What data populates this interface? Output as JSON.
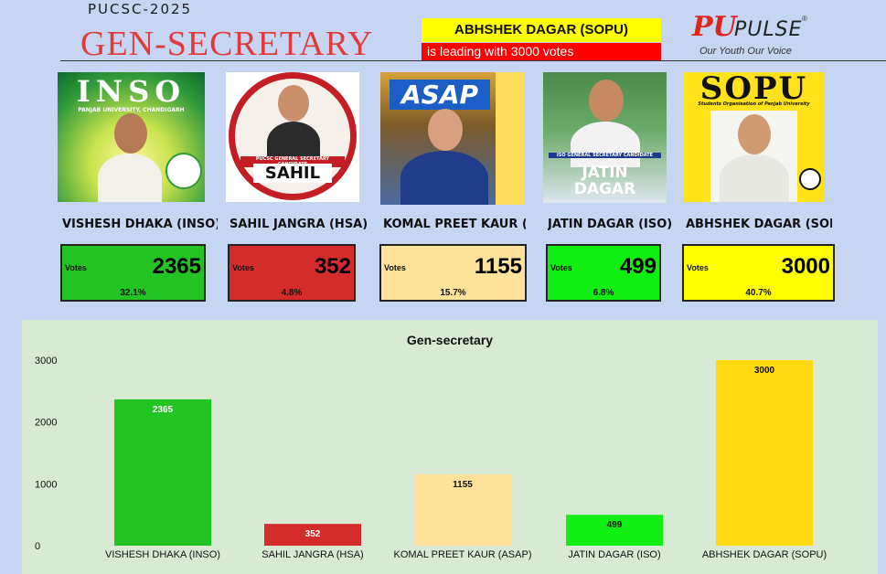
{
  "header": {
    "subtitle": "PUCSC-2025",
    "title": "GEN-SECRETARY"
  },
  "leader": {
    "name": "ABHSHEK DAGAR (SOPU)",
    "text": "is leading with 3000 votes"
  },
  "logo": {
    "brand_pu": "PU",
    "brand_pulse": "PULSE",
    "tagline": "Our Youth Our Voice",
    "registered": "®"
  },
  "colors": {
    "inso": "#22c322",
    "hsa": "#d42b2b",
    "asap": "#ffe299",
    "iso": "#11ee11",
    "sopu": "#ffff00",
    "chart_sopu": "#ffd912"
  },
  "candidates": [
    {
      "name": "VISHESH DHAKA (INSO)",
      "votes_label": "Votes",
      "votes": "2365",
      "percent": "32.1%",
      "photo": {
        "badge": "INSO",
        "caption": "PANJAB UNIVERSITY, CHANDIGARH"
      }
    },
    {
      "name": "SAHIL JANGRA (HSA)",
      "votes_label": "Votes",
      "votes": "352",
      "percent": "4.8%",
      "photo": {
        "badge": "SAHIL",
        "caption": "PUCSC GENERAL SECRETARY CANDIDATE"
      }
    },
    {
      "name": "KOMAL PREET KAUR (AS",
      "votes_label": "Votes",
      "votes": "1155",
      "percent": "15.7%",
      "photo": {
        "badge": "ASAP",
        "caption": ""
      }
    },
    {
      "name": "JATIN DAGAR (ISO)",
      "votes_label": "Votes",
      "votes": "499",
      "percent": "6.8%",
      "photo": {
        "badge": "JATIN DAGAR",
        "caption": "ISO GENERAL SECRETARY CANDIDATE"
      }
    },
    {
      "name": "ABHSHEK DAGAR (SOPU",
      "votes_label": "Votes",
      "votes": "3000",
      "percent": "40.7%",
      "photo": {
        "badge": "SOPU",
        "caption": "Students Organisation of Panjab University"
      }
    }
  ],
  "chart_data": {
    "type": "bar",
    "title": "Gen-secretary",
    "categories": [
      "VISHESH DHAKA (INSO)",
      "SAHIL JANGRA (HSA)",
      "KOMAL PREET KAUR (ASAP)",
      "JATIN DAGAR (ISO)",
      "ABHSHEK DAGAR (SOPU)"
    ],
    "values": [
      2365,
      352,
      1155,
      499,
      3000
    ],
    "colors": [
      "#22c322",
      "#d42b2b",
      "#ffe299",
      "#11ee11",
      "#ffd912"
    ],
    "label_colors": [
      "#ffffff",
      "#ffffff",
      "#111111",
      "#111111",
      "#111111"
    ],
    "yticks": [
      0,
      1000,
      2000,
      3000
    ],
    "ylim": [
      0,
      3000
    ],
    "grid": false,
    "legend": "none"
  }
}
